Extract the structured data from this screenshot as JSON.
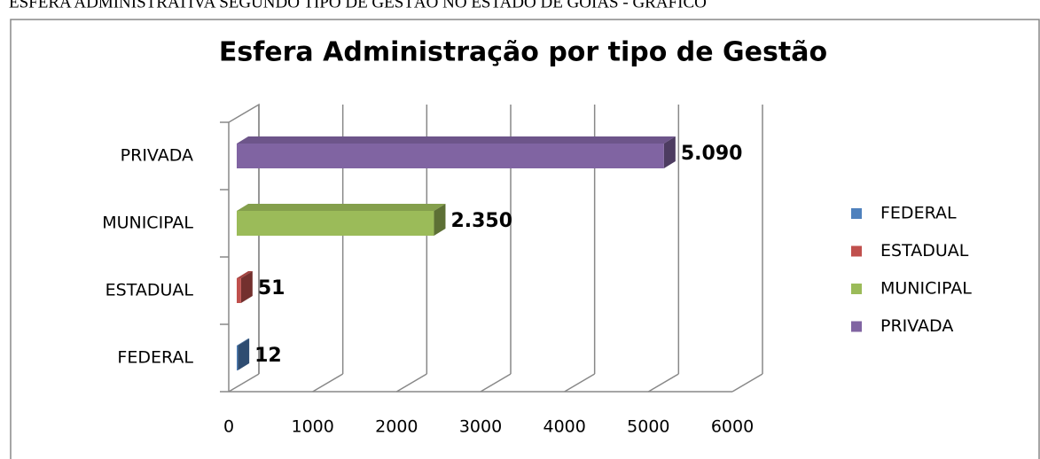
{
  "heading": "ESFERA ADMINISTRATIVA SEGUNDO TIPO DE GESTÃO NO ESTADO DE GOIÁS - GRÁFICO",
  "chart_data": {
    "type": "bar3d_horizontal",
    "title": "Esfera Administração por tipo de Gestão",
    "categories": [
      "FEDERAL",
      "ESTADUAL",
      "MUNICIPAL",
      "PRIVADA"
    ],
    "values": [
      12,
      51,
      2350,
      5090
    ],
    "value_labels": [
      "12",
      "51",
      "2.350",
      "5.090"
    ],
    "colors": [
      "#4f81bd",
      "#c0504d",
      "#9bbb59",
      "#8064a2"
    ],
    "xlim": [
      0,
      6000
    ],
    "xticks": [
      0,
      1000,
      2000,
      3000,
      4000,
      5000,
      6000
    ],
    "grid": true,
    "legend": "right"
  }
}
